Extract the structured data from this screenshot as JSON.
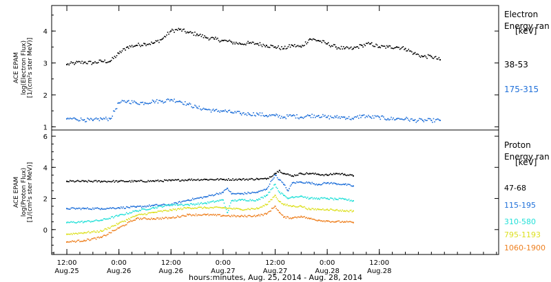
{
  "chart_data": [
    {
      "type": "scatter",
      "panel": "electron",
      "ylabel": [
        "ACE EPAM",
        "log(Electron Flux)",
        "[1/(cm²s ster MeV)]"
      ],
      "ylim": [
        0.9,
        4.8
      ],
      "yticks": [
        "1",
        "2",
        "3",
        "4"
      ],
      "legend_title": [
        "Electron",
        "Energy ran",
        "[keV]"
      ],
      "series": [
        {
          "name": "38-53",
          "color": "#000000",
          "x": [
            0,
            2,
            4,
            6,
            8,
            10,
            12,
            14,
            16,
            18,
            20,
            22,
            24,
            26,
            28,
            30,
            32,
            34,
            36,
            38,
            40,
            42,
            44,
            46,
            48,
            50,
            52,
            54,
            56,
            58,
            60,
            62,
            64,
            66,
            68,
            70,
            72,
            74,
            76,
            78,
            80,
            82,
            84,
            86
          ],
          "values": [
            2.95,
            3.0,
            3.02,
            3.0,
            3.05,
            3.05,
            3.3,
            3.5,
            3.55,
            3.6,
            3.62,
            3.75,
            4.0,
            4.05,
            3.95,
            3.9,
            3.8,
            3.75,
            3.7,
            3.65,
            3.6,
            3.62,
            3.6,
            3.55,
            3.5,
            3.45,
            3.55,
            3.5,
            3.75,
            3.7,
            3.6,
            3.5,
            3.45,
            3.45,
            3.55,
            3.6,
            3.5,
            3.5,
            3.5,
            3.45,
            3.3,
            3.2,
            3.2,
            3.1
          ]
        },
        {
          "name": "175-315",
          "color": "#1e6fd9",
          "x": [
            0,
            2,
            4,
            6,
            8,
            10,
            12,
            14,
            16,
            18,
            20,
            22,
            24,
            26,
            28,
            30,
            32,
            34,
            36,
            38,
            40,
            42,
            44,
            46,
            48,
            50,
            52,
            54,
            56,
            58,
            60,
            62,
            64,
            66,
            68,
            70,
            72,
            74,
            76,
            78,
            80,
            82,
            84,
            86
          ],
          "values": [
            1.25,
            1.25,
            1.22,
            1.2,
            1.25,
            1.25,
            1.75,
            1.8,
            1.75,
            1.75,
            1.8,
            1.8,
            1.85,
            1.8,
            1.7,
            1.6,
            1.55,
            1.5,
            1.5,
            1.45,
            1.42,
            1.4,
            1.4,
            1.35,
            1.35,
            1.3,
            1.35,
            1.3,
            1.35,
            1.35,
            1.3,
            1.3,
            1.3,
            1.25,
            1.35,
            1.3,
            1.3,
            1.25,
            1.25,
            1.25,
            1.2,
            1.2,
            1.2,
            1.2
          ]
        }
      ]
    },
    {
      "type": "scatter",
      "panel": "proton",
      "ylabel": [
        "ACE EPAM",
        "log(Proton Flux)",
        "[1/(cm²s ster MeV)]"
      ],
      "ylim": [
        -1.6,
        6.4
      ],
      "yticks": [
        "0",
        "2",
        "4",
        "6"
      ],
      "legend_title": [
        "Proton",
        "Energy ran",
        "[keV]"
      ],
      "xlabel": "hours:minutes, Aug. 25, 2014 - Aug. 28, 2014",
      "xlim": [
        -3.5,
        99.5
      ],
      "xticks": [
        {
          "x": 0,
          "time": "12:00",
          "date": "Aug.25"
        },
        {
          "x": 12,
          "time": "0:00",
          "date": "Aug.26"
        },
        {
          "x": 24,
          "time": "12:00",
          "date": "Aug.26"
        },
        {
          "x": 36,
          "time": "0:00",
          "date": "Aug.27"
        },
        {
          "x": 48,
          "time": "12:00",
          "date": "Aug.27"
        },
        {
          "x": 60,
          "time": "0:00",
          "date": "Aug.28"
        },
        {
          "x": 72,
          "time": "12:00",
          "date": "Aug.28"
        }
      ],
      "series": [
        {
          "name": "47-68",
          "color": "#000000",
          "x": [
            0,
            4,
            8,
            12,
            16,
            20,
            24,
            28,
            32,
            36,
            40,
            44,
            46,
            48,
            49,
            50,
            52,
            54,
            56,
            58,
            60,
            62,
            64,
            66
          ],
          "values": [
            3.1,
            3.1,
            3.1,
            3.1,
            3.1,
            3.12,
            3.15,
            3.2,
            3.22,
            3.22,
            3.22,
            3.25,
            3.25,
            3.6,
            3.8,
            3.6,
            3.45,
            3.6,
            3.6,
            3.55,
            3.5,
            3.6,
            3.55,
            3.45
          ]
        },
        {
          "name": "115-195",
          "color": "#1e6fd9",
          "x": [
            0,
            4,
            8,
            12,
            16,
            20,
            24,
            28,
            32,
            36,
            37,
            38,
            40,
            44,
            46,
            48,
            49,
            50,
            51,
            52,
            54,
            56,
            58,
            60,
            62,
            64,
            66
          ],
          "values": [
            1.35,
            1.35,
            1.35,
            1.4,
            1.45,
            1.55,
            1.6,
            1.9,
            2.1,
            2.4,
            2.65,
            2.3,
            2.3,
            2.4,
            2.6,
            3.5,
            3.2,
            2.9,
            2.5,
            3.0,
            3.05,
            3.0,
            2.9,
            3.0,
            2.95,
            2.9,
            2.8
          ]
        },
        {
          "name": "310-580",
          "color": "#22e0d8",
          "x": [
            0,
            4,
            8,
            12,
            16,
            20,
            24,
            28,
            32,
            36,
            37,
            38,
            40,
            44,
            46,
            48,
            49,
            50,
            51,
            52,
            54,
            56,
            58,
            60,
            62,
            64,
            66
          ],
          "values": [
            0.45,
            0.5,
            0.6,
            0.9,
            1.2,
            1.4,
            1.6,
            1.6,
            1.7,
            1.9,
            1.1,
            1.85,
            1.9,
            1.9,
            2.2,
            2.9,
            2.4,
            2.2,
            2.0,
            2.1,
            2.15,
            2.0,
            2.0,
            2.0,
            1.95,
            1.95,
            1.85
          ]
        },
        {
          "name": "795-1193",
          "color": "#dde020",
          "x": [
            0,
            4,
            8,
            12,
            16,
            20,
            24,
            28,
            32,
            36,
            40,
            44,
            46,
            48,
            49,
            50,
            52,
            54,
            56,
            58,
            60,
            62,
            64,
            66
          ],
          "values": [
            -0.3,
            -0.2,
            -0.1,
            0.4,
            0.9,
            1.1,
            1.25,
            1.4,
            1.4,
            1.4,
            1.3,
            1.35,
            1.6,
            2.2,
            1.8,
            1.6,
            1.5,
            1.5,
            1.3,
            1.3,
            1.3,
            1.25,
            1.2,
            1.2
          ]
        },
        {
          "name": "1060-1900",
          "color": "#ee8020",
          "x": [
            0,
            4,
            8,
            12,
            16,
            20,
            24,
            28,
            32,
            36,
            40,
            44,
            46,
            48,
            49,
            50,
            52,
            54,
            56,
            58,
            60,
            62,
            64,
            66
          ],
          "values": [
            -0.8,
            -0.7,
            -0.5,
            0.1,
            0.7,
            0.7,
            0.75,
            0.95,
            0.95,
            0.9,
            0.85,
            0.9,
            1.0,
            1.5,
            1.1,
            0.8,
            0.75,
            0.85,
            0.7,
            0.6,
            0.55,
            0.5,
            0.5,
            0.45
          ]
        }
      ]
    }
  ]
}
